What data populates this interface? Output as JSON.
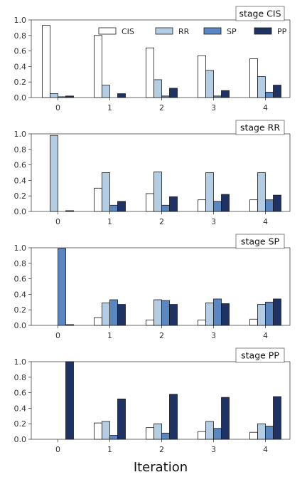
{
  "chart_data": {
    "type": "bar",
    "xlabel": "Iteration",
    "categories": [
      "0",
      "1",
      "2",
      "3",
      "4"
    ],
    "ylim": [
      0,
      1.0
    ],
    "yticks": [
      "0.0",
      "0.2",
      "0.4",
      "0.6",
      "0.8",
      "1.0"
    ],
    "legend": {
      "placement": "top-right of first panel",
      "entries": [
        "CIS",
        "RR",
        "SP",
        "PP"
      ]
    },
    "series_colors": {
      "CIS": "#ffffff",
      "RR": "#b5cde3",
      "SP": "#5a86c2",
      "PP": "#1f3264"
    },
    "panels": [
      {
        "stage_label": "stage CIS",
        "series": [
          {
            "name": "CIS",
            "values": [
              0.93,
              0.8,
              0.64,
              0.54,
              0.5
            ]
          },
          {
            "name": "RR",
            "values": [
              0.05,
              0.16,
              0.23,
              0.35,
              0.27
            ]
          },
          {
            "name": "SP",
            "values": [
              0.01,
              0.0,
              0.02,
              0.02,
              0.07
            ]
          },
          {
            "name": "PP",
            "values": [
              0.02,
              0.05,
              0.12,
              0.09,
              0.16
            ]
          }
        ]
      },
      {
        "stage_label": "stage RR",
        "series": [
          {
            "name": "CIS",
            "values": [
              0.0,
              0.3,
              0.23,
              0.15,
              0.15
            ]
          },
          {
            "name": "RR",
            "values": [
              0.98,
              0.5,
              0.51,
              0.5,
              0.5
            ]
          },
          {
            "name": "SP",
            "values": [
              0.0,
              0.08,
              0.08,
              0.13,
              0.15
            ]
          },
          {
            "name": "PP",
            "values": [
              0.01,
              0.13,
              0.19,
              0.22,
              0.21
            ]
          }
        ]
      },
      {
        "stage_label": "stage SP",
        "series": [
          {
            "name": "CIS",
            "values": [
              0.0,
              0.1,
              0.07,
              0.07,
              0.08
            ]
          },
          {
            "name": "RR",
            "values": [
              0.0,
              0.29,
              0.33,
              0.29,
              0.27
            ]
          },
          {
            "name": "SP",
            "values": [
              0.99,
              0.33,
              0.32,
              0.34,
              0.3
            ]
          },
          {
            "name": "PP",
            "values": [
              0.01,
              0.27,
              0.27,
              0.28,
              0.34
            ]
          }
        ]
      },
      {
        "stage_label": "stage PP",
        "series": [
          {
            "name": "CIS",
            "values": [
              0.0,
              0.21,
              0.15,
              0.1,
              0.09
            ]
          },
          {
            "name": "RR",
            "values": [
              0.0,
              0.23,
              0.2,
              0.23,
              0.2
            ]
          },
          {
            "name": "SP",
            "values": [
              0.0,
              0.05,
              0.08,
              0.14,
              0.17
            ]
          },
          {
            "name": "PP",
            "values": [
              1.0,
              0.52,
              0.58,
              0.54,
              0.55
            ]
          }
        ]
      }
    ]
  }
}
